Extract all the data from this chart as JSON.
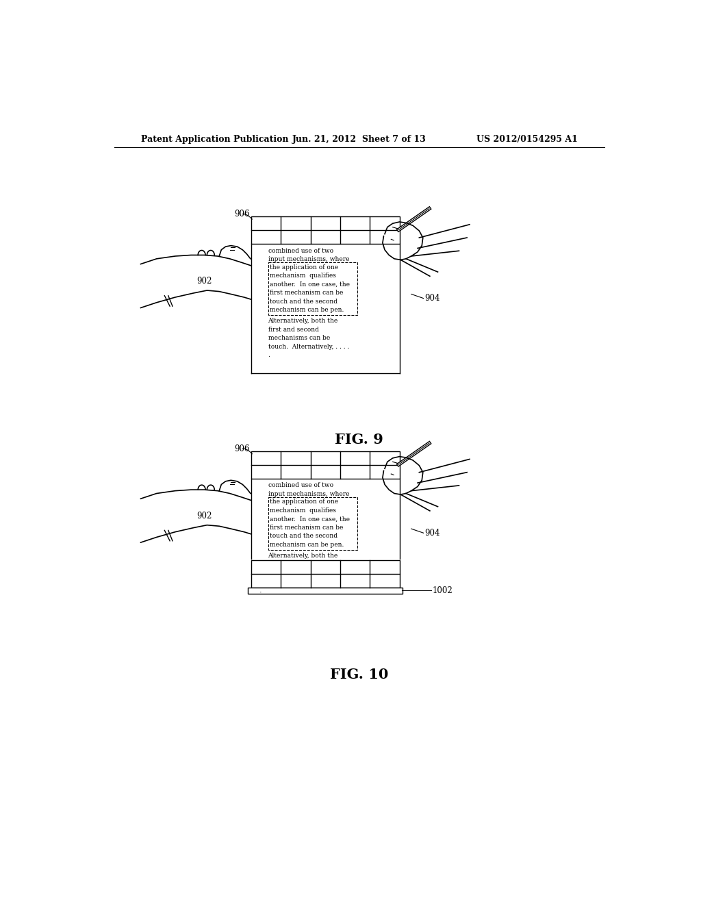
{
  "background_color": "#ffffff",
  "header_left": "Patent Application Publication",
  "header_center": "Jun. 21, 2012  Sheet 7 of 13",
  "header_right": "US 2012/0154295 A1",
  "fig9_label": "FIG. 9",
  "fig10_label": "FIG. 10",
  "fig9_ref906": "906",
  "fig9_ref902": "902",
  "fig9_ref904": "904",
  "fig10_ref906": "906",
  "fig10_ref902": "902",
  "fig10_ref904": "904",
  "fig10_ref1002": "1002"
}
